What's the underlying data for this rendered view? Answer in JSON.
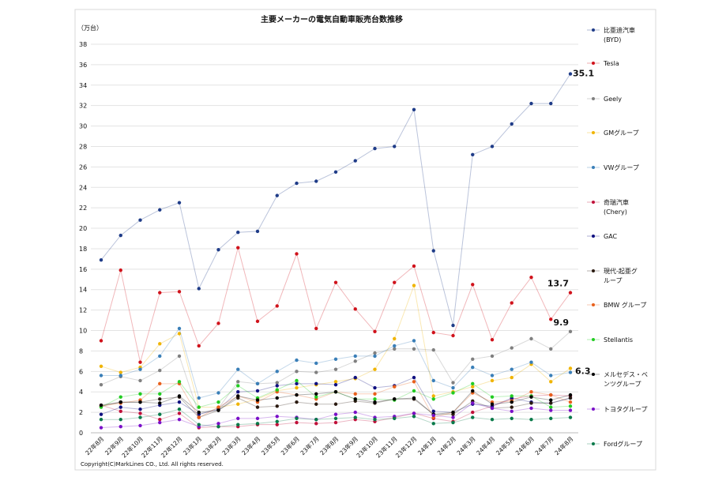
{
  "chart_data": {
    "type": "line",
    "title": "主要メーカーの電気自動車販売台数推移",
    "ylabel": "（万台）",
    "ylim": [
      0,
      38
    ],
    "yticks": [
      0,
      2,
      4,
      6,
      8,
      10,
      12,
      14,
      16,
      18,
      20,
      22,
      24,
      26,
      28,
      30,
      32,
      34,
      36,
      38
    ],
    "grid": true,
    "legend_position": "right",
    "copyright": "Copyright(C)MarkLines CO., Ltd. All rights reserved.",
    "categories": [
      "22年8月",
      "22年9月",
      "22年10月",
      "22年11月",
      "22年12月",
      "23年1月",
      "23年2月",
      "23年3月",
      "23年4月",
      "23年5月",
      "23年6月",
      "23年7月",
      "23年8月",
      "23年9月",
      "23年10月",
      "23年11月",
      "23年12月",
      "24年1月",
      "24年2月",
      "24年3月",
      "24年4月",
      "24年5月",
      "24年6月",
      "24年7月",
      "24年8月"
    ],
    "series": [
      {
        "name": "比亜迪汽車(BYD)",
        "label_lines": [
          "比亜迪汽車",
          "(BYD)"
        ],
        "color": "#1f3c88",
        "values": [
          16.9,
          19.3,
          20.8,
          21.8,
          22.5,
          14.1,
          17.9,
          19.6,
          19.7,
          23.2,
          24.4,
          24.6,
          25.5,
          26.6,
          27.8,
          28.0,
          31.6,
          17.8,
          10.5,
          27.2,
          28.0,
          30.2,
          32.2,
          32.2,
          35.1
        ]
      },
      {
        "name": "Tesla",
        "label_lines": [
          "Tesla"
        ],
        "color": "#d0121b",
        "values": [
          9.0,
          15.9,
          6.9,
          13.7,
          13.8,
          8.5,
          10.7,
          18.1,
          10.9,
          12.4,
          17.5,
          10.2,
          14.7,
          12.1,
          9.9,
          14.7,
          16.3,
          9.8,
          9.5,
          14.5,
          9.1,
          12.7,
          15.2,
          11.1,
          13.7
        ]
      },
      {
        "name": "Geely",
        "label_lines": [
          "Geely"
        ],
        "color": "#808080",
        "values": [
          4.7,
          5.5,
          5.1,
          6.1,
          7.5,
          1.8,
          2.4,
          5.0,
          4.8,
          4.9,
          6.0,
          5.9,
          6.2,
          7.0,
          7.8,
          8.2,
          8.2,
          8.1,
          4.9,
          7.2,
          7.5,
          8.3,
          9.2,
          8.2,
          9.9
        ]
      },
      {
        "name": "GMグループ",
        "label_lines": [
          "GMグループ"
        ],
        "color": "#f0b400",
        "values": [
          6.5,
          5.9,
          6.4,
          8.7,
          9.7,
          2.5,
          2.5,
          2.8,
          3.3,
          4.1,
          4.4,
          4.7,
          5.0,
          5.3,
          6.2,
          9.2,
          14.4,
          3.6,
          4.0,
          4.5,
          5.1,
          5.4,
          6.7,
          5.0,
          6.3
        ]
      },
      {
        "name": "VWグループ",
        "label_lines": [
          "VWグループ"
        ],
        "color": "#3a7fb8",
        "values": [
          5.6,
          5.6,
          6.2,
          7.5,
          10.2,
          3.4,
          3.9,
          6.2,
          4.8,
          6.0,
          7.1,
          6.8,
          7.2,
          7.5,
          7.5,
          8.5,
          9.0,
          5.1,
          4.4,
          6.4,
          5.6,
          6.2,
          6.9,
          5.6,
          5.9
        ]
      },
      {
        "name": "奇瑞汽車(Chery)",
        "label_lines": [
          "奇瑞汽車",
          "(Chery)"
        ],
        "color": "#c0103a",
        "values": [
          2.7,
          2.1,
          1.9,
          1.3,
          1.9,
          0.5,
          0.6,
          0.6,
          0.8,
          0.8,
          1.0,
          0.9,
          1.0,
          1.3,
          1.1,
          1.5,
          1.9,
          1.4,
          1.1,
          2.0,
          2.6,
          3.3,
          3.6,
          3.7,
          3.6
        ]
      },
      {
        "name": "GAC",
        "label_lines": [
          "GAC"
        ],
        "color": "#101080",
        "values": [
          1.8,
          2.5,
          2.3,
          2.7,
          3.0,
          1.8,
          2.3,
          4.0,
          4.1,
          4.6,
          4.8,
          4.8,
          4.7,
          5.4,
          4.4,
          4.6,
          5.4,
          2.1,
          2.0,
          2.8,
          2.6,
          3.4,
          3.0,
          2.9,
          3.4
        ]
      },
      {
        "name": "現代-起亜グループ",
        "label_lines": [
          "現代-起亜グ",
          "ループ"
        ],
        "color": "#2a1a10",
        "values": [
          2.6,
          3.0,
          3.0,
          3.3,
          3.5,
          1.5,
          2.2,
          3.4,
          2.5,
          2.6,
          3.0,
          2.8,
          2.8,
          3.1,
          2.9,
          3.3,
          3.3,
          1.8,
          1.8,
          3.1,
          2.4,
          2.5,
          2.9,
          2.9,
          3.4
        ]
      },
      {
        "name": "BMW グループ",
        "label_lines": [
          "BMW グループ"
        ],
        "color": "#e8601c",
        "values": [
          2.6,
          2.9,
          3.2,
          4.8,
          4.8,
          1.5,
          2.5,
          3.6,
          3.0,
          4.0,
          3.7,
          3.3,
          4.0,
          3.8,
          3.8,
          4.5,
          5.0,
          1.5,
          2.0,
          3.9,
          3.0,
          3.1,
          4.0,
          3.7,
          3.0
        ]
      },
      {
        "name": "Stellantis",
        "label_lines": [
          "Stellantis"
        ],
        "color": "#22cc22",
        "values": [
          2.5,
          3.5,
          3.8,
          3.8,
          5.0,
          2.5,
          3.0,
          4.6,
          3.4,
          4.2,
          5.1,
          3.5,
          4.0,
          3.3,
          3.3,
          3.2,
          4.1,
          3.3,
          3.9,
          4.8,
          3.5,
          3.6,
          3.6,
          2.5,
          2.6
        ]
      },
      {
        "name": "メルセデス・ベンツグループ",
        "label_lines": [
          "メルセデス・ベ",
          "ンツグループ"
        ],
        "color": "#000000",
        "values": [
          2.7,
          3.0,
          3.0,
          2.9,
          3.6,
          2.0,
          2.2,
          3.6,
          3.2,
          3.4,
          3.7,
          3.8,
          4.0,
          3.3,
          3.0,
          3.3,
          3.4,
          1.8,
          2.0,
          4.1,
          2.8,
          3.0,
          3.5,
          3.2,
          3.7
        ]
      },
      {
        "name": "トヨタグループ",
        "label_lines": [
          "トヨタグループ"
        ],
        "color": "#7a10c8",
        "values": [
          0.5,
          0.6,
          0.7,
          1.0,
          1.3,
          0.6,
          0.9,
          1.4,
          1.4,
          1.6,
          1.5,
          1.3,
          1.8,
          2.0,
          1.5,
          1.6,
          1.9,
          1.7,
          1.5,
          2.9,
          2.4,
          2.1,
          2.4,
          2.2,
          2.2
        ]
      },
      {
        "name": "Fordグループ",
        "label_lines": [
          "Fordグループ"
        ],
        "color": "#0a7a4a",
        "values": [
          1.3,
          1.3,
          1.5,
          1.8,
          2.3,
          0.8,
          0.6,
          0.8,
          0.9,
          1.1,
          1.4,
          1.3,
          1.4,
          1.5,
          1.3,
          1.4,
          1.6,
          0.9,
          1.0,
          1.5,
          1.3,
          1.4,
          1.3,
          1.4,
          1.5
        ]
      }
    ],
    "annotations": [
      {
        "series": "比亜迪汽車(BYD)",
        "category": "24年8月",
        "text": "35.1"
      },
      {
        "series": "Tesla",
        "category": "24年8月",
        "text": "13.7"
      },
      {
        "series": "Geely",
        "category": "24年8月",
        "text": "9.9"
      },
      {
        "series": "GMグループ",
        "category": "24年8月",
        "text": "6.3"
      }
    ]
  }
}
